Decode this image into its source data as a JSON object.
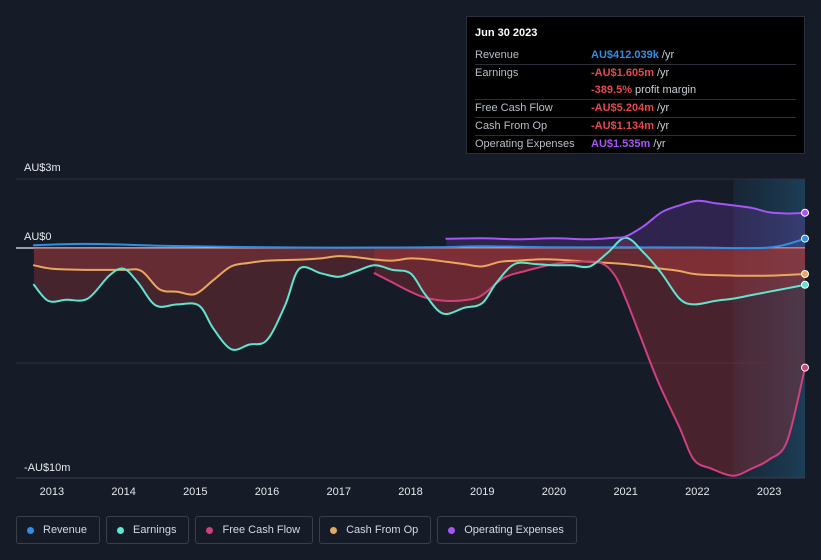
{
  "chart_data": {
    "type": "line",
    "title": "",
    "ylim": [
      -10,
      3
    ],
    "y_ticks": [
      {
        "value": 3,
        "label": "AU$3m"
      },
      {
        "value": 0,
        "label": "AU$0"
      },
      {
        "value": -10,
        "label": "-AU$10m"
      }
    ],
    "xlim": [
      2012.5,
      2023.5
    ],
    "x_ticks": [
      {
        "value": 2013,
        "label": "2013"
      },
      {
        "value": 2014,
        "label": "2014"
      },
      {
        "value": 2015,
        "label": "2015"
      },
      {
        "value": 2016,
        "label": "2016"
      },
      {
        "value": 2017,
        "label": "2017"
      },
      {
        "value": 2018,
        "label": "2018"
      },
      {
        "value": 2019,
        "label": "2019"
      },
      {
        "value": 2020,
        "label": "2020"
      },
      {
        "value": 2021,
        "label": "2021"
      },
      {
        "value": 2022,
        "label": "2022"
      },
      {
        "value": 2023,
        "label": "2023"
      }
    ],
    "highlight_from": 2022.5,
    "series": [
      {
        "name": "Revenue",
        "color": "#2f8fe5",
        "x": [
          2012.75,
          2013.5,
          2014.5,
          2015.5,
          2016.5,
          2017.5,
          2018.5,
          2019.0,
          2020.0,
          2021.0,
          2022.0,
          2023.0,
          2023.5
        ],
        "values": [
          0.12,
          0.18,
          0.1,
          0.05,
          0.02,
          0.02,
          0.04,
          0.08,
          0.03,
          0.03,
          0.02,
          0.02,
          0.41
        ]
      },
      {
        "name": "Earnings",
        "color": "#5ee6d0",
        "x": [
          2012.75,
          2012.95,
          2013.2,
          2013.5,
          2013.8,
          2014.0,
          2014.2,
          2014.45,
          2014.75,
          2015.05,
          2015.25,
          2015.5,
          2015.75,
          2016.0,
          2016.25,
          2016.45,
          2016.75,
          2017.0,
          2017.25,
          2017.5,
          2017.75,
          2018.0,
          2018.2,
          2018.45,
          2018.75,
          2019.0,
          2019.2,
          2019.45,
          2019.75,
          2020.0,
          2020.25,
          2020.5,
          2020.75,
          2021.0,
          2021.25,
          2021.5,
          2021.75,
          2021.95,
          2022.25,
          2022.5,
          2022.75,
          2023.0,
          2023.25,
          2023.5
        ],
        "values": [
          -1.6,
          -2.3,
          -2.25,
          -2.2,
          -1.2,
          -0.9,
          -1.5,
          -2.5,
          -2.45,
          -2.5,
          -3.5,
          -4.4,
          -4.2,
          -4.0,
          -2.5,
          -0.9,
          -1.1,
          -1.25,
          -1.0,
          -0.75,
          -0.95,
          -1.1,
          -2.0,
          -2.85,
          -2.6,
          -2.4,
          -1.5,
          -0.7,
          -0.7,
          -0.75,
          -0.75,
          -0.8,
          -0.2,
          0.45,
          -0.2,
          -1.1,
          -2.2,
          -2.45,
          -2.3,
          -2.2,
          -2.05,
          -1.9,
          -1.75,
          -1.6
        ]
      },
      {
        "name": "Free Cash Flow",
        "color": "#d0407a",
        "x": [
          2017.5,
          2017.75,
          2018.0,
          2018.2,
          2018.5,
          2018.8,
          2019.0,
          2019.3,
          2019.6,
          2020.0,
          2020.3,
          2020.65,
          2020.85,
          2021.0,
          2021.2,
          2021.45,
          2021.75,
          2021.95,
          2022.2,
          2022.5,
          2022.75,
          2023.0,
          2023.25,
          2023.5
        ],
        "values": [
          -1.1,
          -1.5,
          -1.9,
          -2.15,
          -2.3,
          -2.25,
          -2.05,
          -1.3,
          -1.0,
          -0.7,
          -0.6,
          -0.65,
          -1.2,
          -2.2,
          -3.8,
          -5.8,
          -7.8,
          -9.2,
          -9.6,
          -9.9,
          -9.6,
          -9.2,
          -8.4,
          -5.2
        ]
      },
      {
        "name": "Cash From Op",
        "color": "#e8a85f",
        "x": [
          2012.75,
          2013.0,
          2013.5,
          2014.0,
          2014.25,
          2014.5,
          2014.75,
          2015.0,
          2015.25,
          2015.5,
          2015.75,
          2016.0,
          2016.5,
          2016.75,
          2017.0,
          2017.25,
          2017.5,
          2017.75,
          2018.0,
          2018.25,
          2018.5,
          2018.75,
          2019.0,
          2019.25,
          2019.5,
          2019.75,
          2020.0,
          2020.5,
          2021.0,
          2021.5,
          2021.75,
          2022.0,
          2022.5,
          2023.0,
          2023.5
        ],
        "values": [
          -0.75,
          -0.9,
          -0.95,
          -0.95,
          -1.0,
          -1.8,
          -1.9,
          -2.0,
          -1.4,
          -0.8,
          -0.65,
          -0.55,
          -0.5,
          -0.45,
          -0.35,
          -0.4,
          -0.5,
          -0.55,
          -0.45,
          -0.5,
          -0.6,
          -0.7,
          -0.8,
          -0.6,
          -0.55,
          -0.5,
          -0.5,
          -0.6,
          -0.7,
          -0.9,
          -1.0,
          -1.15,
          -1.2,
          -1.2,
          -1.13
        ]
      },
      {
        "name": "Operating Expenses",
        "color": "#a855f7",
        "x": [
          2018.5,
          2019.0,
          2019.5,
          2020.0,
          2020.5,
          2020.85,
          2021.0,
          2021.25,
          2021.5,
          2021.75,
          2022.0,
          2022.25,
          2022.5,
          2022.75,
          2023.0,
          2023.25,
          2023.5
        ],
        "values": [
          0.4,
          0.42,
          0.38,
          0.42,
          0.38,
          0.45,
          0.5,
          0.95,
          1.55,
          1.85,
          2.05,
          1.95,
          1.85,
          1.75,
          1.55,
          1.5,
          1.535
        ]
      }
    ]
  },
  "tooltip": {
    "date": "Jun 30 2023",
    "rows": [
      {
        "label": "Revenue",
        "value": "AU$412.039k",
        "unit": "/yr",
        "color": "blue"
      },
      {
        "label": "Earnings",
        "value": "-AU$1.605m",
        "unit": "/yr",
        "color": "red"
      },
      {
        "label": "",
        "value": "-389.5%",
        "unit": "profit margin",
        "color": "red"
      },
      {
        "label": "Free Cash Flow",
        "value": "-AU$5.204m",
        "unit": "/yr",
        "color": "red"
      },
      {
        "label": "Cash From Op",
        "value": "-AU$1.134m",
        "unit": "/yr",
        "color": "red"
      },
      {
        "label": "Operating Expenses",
        "value": "AU$1.535m",
        "unit": "/yr",
        "color": "purple"
      }
    ]
  },
  "legend": {
    "items": [
      {
        "label": "Revenue",
        "color": "#2f8fe5"
      },
      {
        "label": "Earnings",
        "color": "#5ee6d0"
      },
      {
        "label": "Free Cash Flow",
        "color": "#d0407a"
      },
      {
        "label": "Cash From Op",
        "color": "#e8a85f"
      },
      {
        "label": "Operating Expenses",
        "color": "#a855f7"
      }
    ]
  }
}
